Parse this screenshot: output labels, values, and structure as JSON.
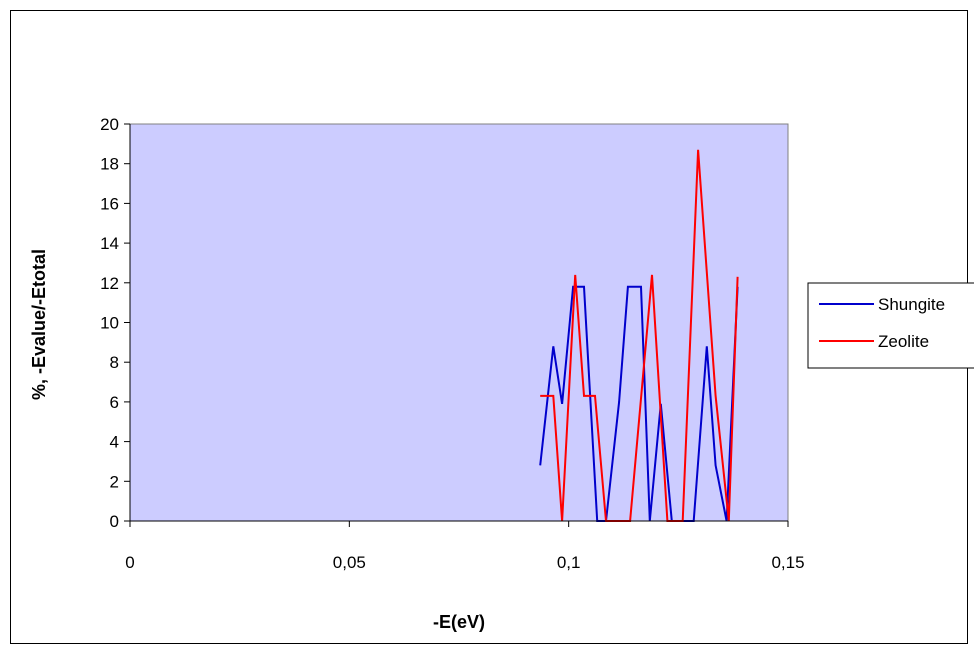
{
  "chart_data": {
    "type": "line",
    "title": "",
    "xlabel": "-E(eV)",
    "ylabel": "%, -Evalue/-Etotal",
    "xlim": [
      0,
      0.15
    ],
    "ylim": [
      0,
      20
    ],
    "x_ticks": [
      0,
      0.05,
      0.1,
      0.15
    ],
    "x_tick_labels": [
      "0",
      "0,05",
      "0,1",
      "0,15"
    ],
    "y_ticks": [
      0,
      2,
      4,
      6,
      8,
      10,
      12,
      14,
      16,
      18,
      20
    ],
    "y_tick_labels": [
      "0",
      "2",
      "4",
      "6",
      "8",
      "10",
      "12",
      "14",
      "16",
      "18",
      "20"
    ],
    "grid": false,
    "legend_position": "right",
    "plot_background": "#CCCCFF",
    "series": [
      {
        "name": "Shungite",
        "color": "#0000CC",
        "x": [
          0.0935,
          0.0965,
          0.0985,
          0.101,
          0.102,
          0.1035,
          0.1065,
          0.1085,
          0.1115,
          0.1135,
          0.1155,
          0.1165,
          0.1185,
          0.121,
          0.1235,
          0.1255,
          0.1285,
          0.1315,
          0.1335,
          0.136,
          0.1385
        ],
        "y": [
          2.8,
          8.8,
          5.9,
          11.8,
          11.8,
          11.8,
          0,
          0,
          6,
          11.8,
          11.8,
          11.8,
          0,
          5.9,
          0,
          0,
          0,
          8.8,
          2.8,
          0,
          11.8
        ]
      },
      {
        "name": "Zeolite",
        "color": "#FF0000",
        "x": [
          0.0935,
          0.0965,
          0.0985,
          0.1015,
          0.1035,
          0.106,
          0.1085,
          0.1115,
          0.114,
          0.119,
          0.1225,
          0.126,
          0.1295,
          0.1335,
          0.1365,
          0.1385
        ],
        "y": [
          6.3,
          6.3,
          0,
          12.4,
          6.3,
          6.3,
          0,
          0,
          0,
          12.4,
          0,
          0,
          18.7,
          6.3,
          0,
          12.3
        ]
      }
    ]
  }
}
